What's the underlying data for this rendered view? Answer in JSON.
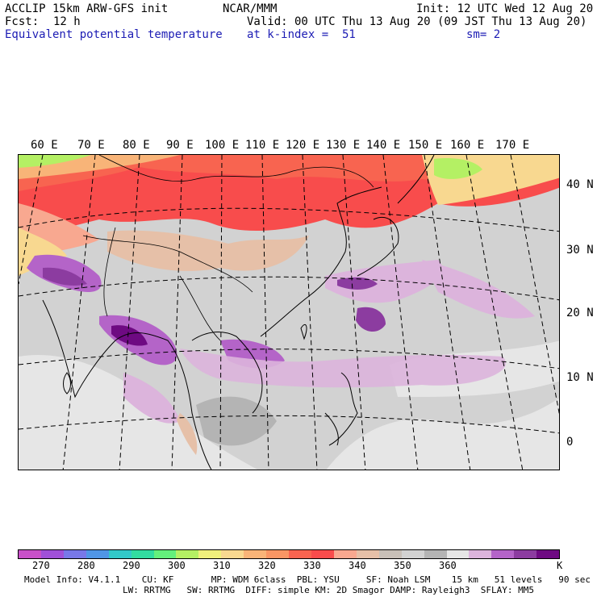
{
  "header": {
    "model": "ACCLIP 15km ARW-GFS init",
    "org": "NCAR/MMM",
    "init": "Init: 12 UTC Wed 12 Aug 20",
    "fcst_label": "Fcst:",
    "fcst_value": "12 h",
    "valid": "Valid: 00 UTC Thu 13 Aug 20 (09 JST Thu 13 Aug 20)",
    "field": "Equivalent potential temperature",
    "level": "at k-index =  51",
    "smooth": "sm= 2"
  },
  "map": {
    "lon_labels": [
      "60 E",
      "70 E",
      "80 E",
      "90 E",
      "100 E",
      "110 E",
      "120 E",
      "130 E",
      "140 E",
      "150 E",
      "160 E",
      "170 E"
    ],
    "lat_labels": [
      "40 N",
      "30 N",
      "20 N",
      "10 N",
      "0"
    ]
  },
  "colorbar": {
    "colors": [
      "#c850c8",
      "#a050d8",
      "#7878e8",
      "#5096e6",
      "#32c8c8",
      "#32dca0",
      "#64f07c",
      "#b4f064",
      "#f0f07c",
      "#f8d890",
      "#f8b478",
      "#f89664",
      "#f86450",
      "#f84c4c",
      "#f8a890",
      "#e6c0a8",
      "#c8c0b8",
      "#d2d2d2",
      "#b4b4b4",
      "#e6e6e6",
      "#dcb4dc",
      "#b464c8",
      "#8c3ca0",
      "#6e0a82"
    ],
    "labels": [
      "270",
      "280",
      "290",
      "300",
      "310",
      "320",
      "330",
      "340",
      "350",
      "360"
    ],
    "unit": "K"
  },
  "footer": {
    "line1": "Model Info: V4.1.1    CU: KF       MP: WDM 6class  PBL: YSU     SF: Noah LSM    15 km   51 levels   90 sec",
    "line2": "LW: RRTMG   SW: RRTMG  DIFF: simple KM: 2D Smagor DAMP: Rayleigh3  SFLAY: MM5"
  }
}
